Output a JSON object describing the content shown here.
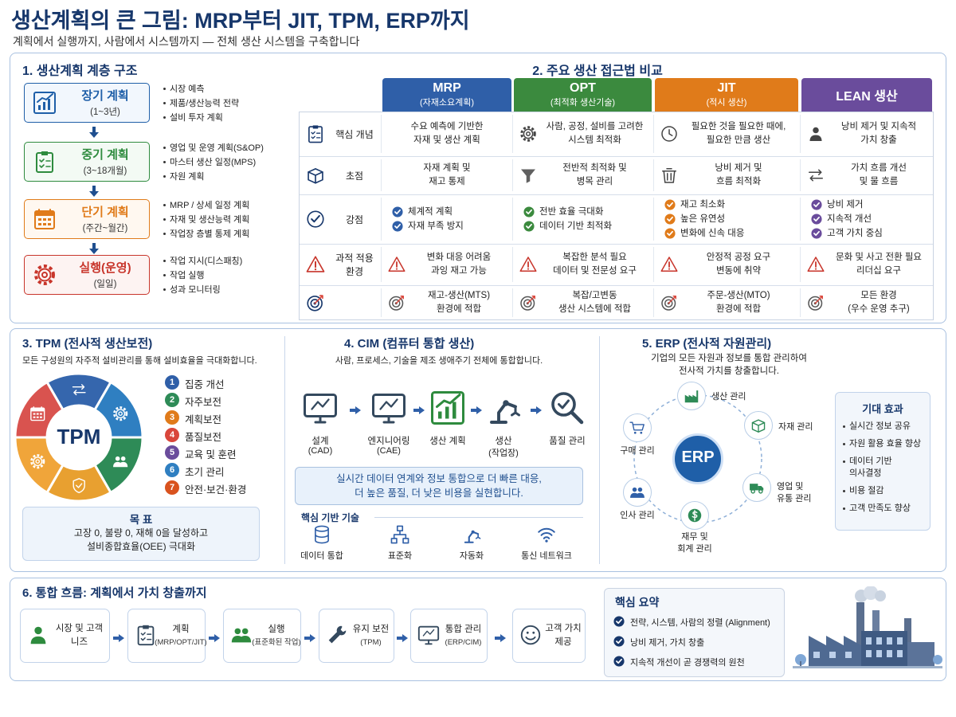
{
  "header": {
    "title": "생산계획의 큰 그림: MRP부터 JIT, TPM, ERP까지",
    "subtitle": "계획에서 실행까지, 사람에서 시스템까지 — 전체 생산 시스템을 구축합니다"
  },
  "hierarchy": {
    "title": "1. 생산계획 계층 구조",
    "levels": [
      {
        "name": "장기 계획",
        "period": "(1~3년)",
        "items": [
          "시장 예측",
          "제품/생산능력 전략",
          "설비 투자 계획"
        ]
      },
      {
        "name": "중기 계획",
        "period": "(3~18개월)",
        "items": [
          "영업 및 운영 계획(S&OP)",
          "마스터 생산 일정(MPS)",
          "자원 계획"
        ]
      },
      {
        "name": "단기 계획",
        "period": "(주간~월간)",
        "items": [
          "MRP / 상세 일정 계획",
          "자재 및 생산능력 계획",
          "작업장 층별 통제 계획"
        ]
      },
      {
        "name": "실행(운영)",
        "period": "(일일)",
        "items": [
          "작업 지시(디스패칭)",
          "작업 실행",
          "성과 모니터링"
        ]
      }
    ]
  },
  "comparison": {
    "title": "2. 주요 생산 접근법 비교",
    "columns": [
      {
        "name": "MRP",
        "subtitle": "(자재소요계획)"
      },
      {
        "name": "OPT",
        "subtitle": "(최적화 생산기술)"
      },
      {
        "name": "JIT",
        "subtitle": "(적시 생산)"
      },
      {
        "name": "LEAN 생산"
      }
    ],
    "rows": [
      {
        "label": [
          "핵심 개념"
        ],
        "cells": [
          [
            "수요 예측에 기반한",
            "자재 및 생산 계획"
          ],
          [
            "사람, 공정, 설비를 고려한",
            "시스템 최적화"
          ],
          [
            "필요한 것을 필요한 때에,",
            "필요한 만큼 생산"
          ],
          [
            "낭비 제거 및 지속적",
            "가치 창출"
          ]
        ]
      },
      {
        "label": [
          "초점"
        ],
        "cells": [
          [
            "자재 계획 및",
            "재고 통제"
          ],
          [
            "전반적 최적화 및",
            "병목 관리"
          ],
          [
            "낭비 제거 및",
            "흐름 최적화"
          ],
          [
            "가치 흐름 개선",
            "및 물 흐름"
          ]
        ]
      },
      {
        "label": [
          "강점"
        ],
        "checklists": [
          [
            "체계적 계획",
            "자재 부족 방지"
          ],
          [
            "전반 효율 극대화",
            "데이터 기반 최적화"
          ],
          [
            "재고 최소화",
            "높은 유연성",
            "변화에 신속 대응"
          ],
          [
            "낭비 제거",
            "지속적 개선",
            "고객 가치 중심"
          ]
        ]
      },
      {
        "label": [
          "과적 적용",
          "환경"
        ],
        "cells": [
          [
            "변화 대응 어려움",
            "과잉 재고 가능"
          ],
          [
            "복잡한 분석 필요",
            "데이터 및 전문성 요구"
          ],
          [
            "안정적 공정 요구",
            "변동에 취약"
          ],
          [
            "문화 및 사고 전환 필요",
            "리더십 요구"
          ]
        ]
      },
      {
        "cells": [
          [
            "재고-생산(MTS)",
            "환경에 적합"
          ],
          [
            "복잡/고변동",
            "생산 시스템에 적합"
          ],
          [
            "주문-생산(MTO)",
            "환경에 적합"
          ],
          [
            "모든 환경",
            "(우수 운영 추구)"
          ]
        ]
      }
    ]
  },
  "tpm": {
    "title": "3. TPM (전사적 생산보전)",
    "description": "모든 구성원의 자주적 설비관리를 통해 설비효율을 극대화합니다.",
    "center": "TPM",
    "pillars": [
      {
        "no": 1,
        "name": "집중 개선"
      },
      {
        "no": 2,
        "name": "자주보전"
      },
      {
        "no": 3,
        "name": "계획보전"
      },
      {
        "no": 4,
        "name": "품질보전"
      },
      {
        "no": 5,
        "name": "교육 및 훈련"
      },
      {
        "no": 6,
        "name": "초기 관리"
      },
      {
        "no": 7,
        "name": "안전·보건·환경"
      }
    ],
    "goal": {
      "title": "목 표",
      "lines": [
        "고장 0, 불량 0, 재해 0을 달성하고",
        "설비종합효율(OEE) 극대화"
      ]
    }
  },
  "cim": {
    "title": "4. CIM (컴퓨터 통합 생산)",
    "description": "사람, 프로세스, 기술을 제조 생애주기 전체에 통합합니다.",
    "steps": [
      {
        "name": "설계",
        "sub": "(CAD)"
      },
      {
        "name": "엔지니어링",
        "sub": "(CAE)"
      },
      {
        "name": "생산 계획"
      },
      {
        "name": "생산",
        "sub": "(작업장)"
      },
      {
        "name": "품질 관리"
      }
    ],
    "banner": [
      "실시간 데이터 연계와 정보 통합으로 더 빠른 대응,",
      "더 높은 품질, 더 낮은 비용을 실현합니다."
    ],
    "tech_title": "핵심 기반 기술",
    "tech": [
      "데이터 통합",
      "표준화",
      "자동화",
      "통신 네트워크"
    ]
  },
  "erp": {
    "title": "5. ERP (전사적 자원관리)",
    "description": [
      "기업의 모든 자원과 정보를 통합 관리하여",
      "전사적 가치를 창출합니다."
    ],
    "center": "ERP",
    "modules": [
      [
        "생산 관리"
      ],
      [
        "자재 관리"
      ],
      [
        "영업 및",
        "유통 관리"
      ],
      [
        "재무 및",
        "회계 관리"
      ],
      [
        "인사 관리"
      ],
      [
        "구매 관리"
      ]
    ],
    "effects_title": "기대 효과",
    "effects": [
      [
        "실시간 정보 공유"
      ],
      [
        "자원 활용 효율 향상"
      ],
      [
        "데이터 기반",
        "의사결정"
      ],
      [
        "비용 절감"
      ],
      [
        "고객 만족도 향상"
      ]
    ]
  },
  "flow": {
    "title": "6. 통합 흐름: 계획에서 가치 창출까지",
    "steps": [
      {
        "name": [
          "시장 및 고객",
          "니즈"
        ]
      },
      {
        "name": [
          "계획"
        ],
        "sub": "(MRP/OPT/JIT)"
      },
      {
        "name": [
          "실행"
        ],
        "sub": "(표준화된 작업)"
      },
      {
        "name": [
          "유지 보전"
        ],
        "sub": "(TPM)"
      },
      {
        "name": [
          "통합 관리"
        ],
        "sub": "(ERP/CIM)"
      },
      {
        "name": [
          "고객 가치",
          "제공"
        ]
      }
    ],
    "summary_title": "핵심 요약",
    "summary": [
      "전략, 시스템, 사람의 정렬 (Alignment)",
      "낭비 제거, 가치 창출",
      "지속적 개선이 곧 경쟁력의 원천"
    ]
  }
}
